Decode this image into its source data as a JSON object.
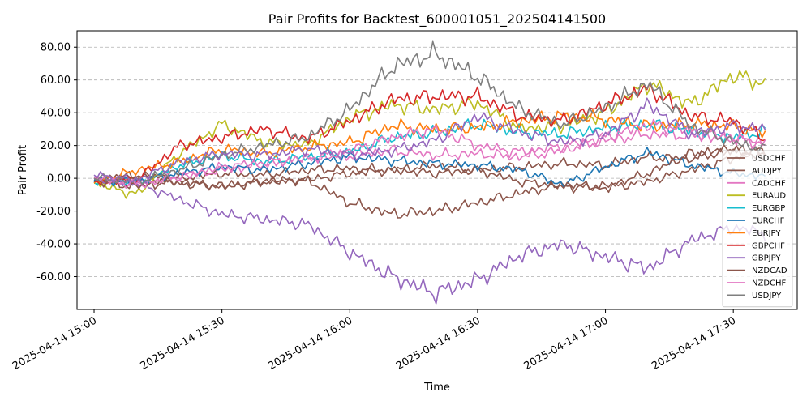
{
  "chart_data": {
    "type": "line",
    "title": "Pair Profits for Backtest_600001051_202504141500",
    "xlabel": "Time",
    "ylabel": "Pair Profit",
    "ylim": [
      -80,
      90
    ],
    "yticks": [
      -60,
      -40,
      -20,
      0,
      20,
      40,
      60,
      80
    ],
    "ytick_labels": [
      "-60.00",
      "-40.00",
      "-20.00",
      "0.00",
      "20.00",
      "40.00",
      "60.00",
      "80.00"
    ],
    "xlim_minutes": [
      -4,
      165
    ],
    "xticks_minutes": [
      0,
      30,
      60,
      90,
      120,
      150
    ],
    "xtick_labels": [
      "2025-04-14 15:00",
      "2025-04-14 15:30",
      "2025-04-14 16:00",
      "2025-04-14 16:30",
      "2025-04-14 17:00",
      "2025-04-14 17:30"
    ],
    "grid": "y-dashed",
    "legend_position": "lower-right",
    "x_minutes": [
      0,
      10,
      20,
      30,
      40,
      50,
      60,
      70,
      80,
      90,
      100,
      110,
      120,
      130,
      140,
      150,
      158
    ],
    "series": [
      {
        "name": "USDCHF",
        "color": "#8c564b",
        "values": [
          -1,
          2,
          0,
          3,
          2,
          5,
          6,
          5,
          8,
          5,
          7,
          9,
          8,
          13,
          12,
          17,
          15
        ]
      },
      {
        "name": "AUDJPY",
        "color": "#8c564b",
        "values": [
          0,
          1,
          -3,
          -5,
          -2,
          -1,
          3,
          5,
          3,
          5,
          -2,
          -5,
          -6,
          -2,
          5,
          12,
          19
        ]
      },
      {
        "name": "CADCHF",
        "color": "#e377c2",
        "values": [
          -2,
          -3,
          1,
          5,
          8,
          12,
          14,
          17,
          14,
          15,
          13,
          17,
          23,
          27,
          26,
          24,
          22
        ]
      },
      {
        "name": "EURAUD",
        "color": "#bcbd22",
        "values": [
          -3,
          -10,
          15,
          33,
          22,
          20,
          37,
          45,
          42,
          46,
          30,
          32,
          40,
          58,
          45,
          63,
          57
        ]
      },
      {
        "name": "EURGBP",
        "color": "#17becf",
        "values": [
          -2,
          -3,
          8,
          14,
          10,
          13,
          16,
          25,
          28,
          33,
          28,
          27,
          31,
          33,
          29,
          25,
          29
        ]
      },
      {
        "name": "EURCHF",
        "color": "#1f77b4",
        "values": [
          -1,
          -2,
          3,
          7,
          5,
          9,
          13,
          11,
          9,
          8,
          5,
          -4,
          7,
          16,
          8,
          3,
          1
        ]
      },
      {
        "name": "EURJPY",
        "color": "#ff7f0e",
        "values": [
          -3,
          5,
          10,
          18,
          15,
          19,
          22,
          32,
          30,
          31,
          35,
          38,
          36,
          32,
          33,
          32,
          27
        ]
      },
      {
        "name": "GBPCHF",
        "color": "#d62728",
        "values": [
          -2,
          -1,
          20,
          25,
          30,
          24,
          35,
          48,
          50,
          50,
          38,
          35,
          45,
          55,
          38,
          35,
          23
        ]
      },
      {
        "name": "GBPJPY",
        "color": "#9467bd",
        "values": [
          0,
          -3,
          -13,
          -22,
          -25,
          -28,
          -45,
          -60,
          -70,
          -62,
          -47,
          -40,
          -48,
          -55,
          -38,
          -30,
          -34
        ]
      },
      {
        "name": "NZDCAD",
        "color": "#8c564b",
        "values": [
          -2,
          -5,
          -2,
          -5,
          -2,
          -1,
          -15,
          -22,
          -20,
          -15,
          -9,
          -4,
          -5,
          3,
          15,
          18,
          12
        ]
      },
      {
        "name": "NZDCHF",
        "color": "#e377c2",
        "values": [
          0,
          -4,
          1,
          7,
          10,
          12,
          17,
          25,
          30,
          20,
          16,
          20,
          25,
          33,
          29,
          25,
          20
        ]
      },
      {
        "name": "USDJPY",
        "color": "#7f7f7f",
        "values": [
          0,
          -2,
          5,
          14,
          20,
          25,
          42,
          68,
          76,
          62,
          42,
          33,
          43,
          58,
          32,
          22,
          17
        ]
      },
      {
        "name": "GBPJPY",
        "color": "#9467bd",
        "values": [
          2,
          -1,
          10,
          15,
          14,
          18,
          14,
          17,
          23,
          38,
          28,
          22,
          27,
          45,
          27,
          32,
          30
        ]
      }
    ]
  }
}
